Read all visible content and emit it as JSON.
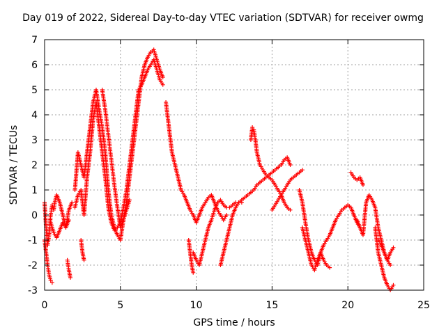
{
  "chart_data": {
    "type": "scatter",
    "title": "Day 019 of 2022, Sidereal Day-to-day VTEC variation (SDTVAR) for receiver owmg",
    "xlabel": "GPS time / hours",
    "ylabel": "SDTVAR / TECUs",
    "xlim": [
      0,
      25
    ],
    "ylim": [
      -3,
      7
    ],
    "xticks": [
      "0",
      "5",
      "10",
      "15",
      "20",
      "25"
    ],
    "yticks": [
      "-3",
      "-2",
      "-1",
      "0",
      "1",
      "2",
      "3",
      "4",
      "5",
      "6",
      "7"
    ],
    "grid": true,
    "marker": "+",
    "color": "#ff0000",
    "series": [
      {
        "name": "trace-1",
        "x": [
          0.0,
          0.1,
          0.2,
          0.3,
          0.4,
          0.5,
          0.6,
          0.7,
          0.8,
          1.0,
          1.2,
          1.4,
          1.6,
          1.8
        ],
        "y": [
          0.5,
          -0.5,
          -1.2,
          -0.8,
          0.0,
          0.4,
          0.2,
          0.6,
          0.8,
          0.5,
          0.0,
          -0.5,
          0.2,
          0.5
        ]
      },
      {
        "name": "trace-2",
        "x": [
          0.0,
          0.1,
          0.2,
          0.3,
          0.4,
          0.5
        ],
        "y": [
          -1.0,
          -1.5,
          -2.0,
          -2.4,
          -2.6,
          -2.7
        ]
      },
      {
        "name": "trace-3",
        "x": [
          0.4,
          0.6,
          0.8,
          1.0,
          1.2,
          1.4,
          1.6
        ],
        "y": [
          -0.3,
          -0.7,
          -0.9,
          -0.6,
          -0.3,
          -0.5,
          -0.2
        ]
      },
      {
        "name": "trace-4",
        "x": [
          1.5,
          1.6,
          1.7
        ],
        "y": [
          -1.8,
          -2.2,
          -2.5
        ]
      },
      {
        "name": "trace-5",
        "x": [
          2.0,
          2.2,
          2.4,
          2.6,
          2.8,
          3.0,
          3.2,
          3.4,
          3.6,
          3.8,
          4.0,
          4.2,
          4.4,
          4.6,
          4.8,
          5.0,
          5.2,
          5.4,
          5.6,
          5.8,
          6.0,
          6.2,
          6.4,
          6.6,
          6.8,
          7.0,
          7.2,
          7.4,
          7.6,
          7.8
        ],
        "y": [
          1.0,
          2.5,
          2.0,
          1.5,
          2.5,
          3.5,
          4.5,
          5.0,
          4.2,
          3.5,
          2.5,
          1.0,
          0.0,
          -0.5,
          -0.8,
          -1.0,
          -0.2,
          0.5,
          1.5,
          2.5,
          3.5,
          4.5,
          5.5,
          6.0,
          6.3,
          6.5,
          6.6,
          6.2,
          5.8,
          5.5
        ]
      },
      {
        "name": "trace-6",
        "x": [
          2.0,
          2.2,
          2.4,
          2.6,
          2.8,
          3.0,
          3.2,
          3.4,
          3.6,
          3.8,
          4.0,
          4.2,
          4.4,
          4.6,
          4.8,
          5.0,
          5.2,
          5.4,
          5.6,
          5.8,
          6.0,
          6.2,
          6.4,
          6.6,
          6.8,
          7.0,
          7.2,
          7.4,
          7.6,
          7.8
        ],
        "y": [
          0.3,
          0.8,
          1.0,
          0.0,
          1.5,
          2.5,
          3.8,
          4.5,
          3.5,
          2.5,
          1.5,
          0.3,
          -0.3,
          -0.6,
          -0.5,
          -0.3,
          0.3,
          1.0,
          2.0,
          3.0,
          4.0,
          5.0,
          5.2,
          5.5,
          5.8,
          6.0,
          6.2,
          5.8,
          5.4,
          5.2
        ]
      },
      {
        "name": "trace-7",
        "x": [
          2.4,
          2.5,
          2.6
        ],
        "y": [
          -1.0,
          -1.5,
          -1.8
        ]
      },
      {
        "name": "trace-8",
        "x": [
          3.8,
          4.0,
          4.2,
          4.4,
          4.6,
          4.8,
          5.0,
          5.2,
          5.4,
          5.6
        ],
        "y": [
          5.0,
          4.2,
          3.2,
          2.2,
          1.2,
          0.3,
          -0.5,
          -0.2,
          0.2,
          0.6
        ]
      },
      {
        "name": "trace-9",
        "x": [
          8.0,
          8.2,
          8.4,
          8.6,
          8.8,
          9.0,
          9.2,
          9.4,
          9.6,
          9.8,
          10.0,
          10.2,
          10.4,
          10.6,
          10.8,
          11.0,
          11.2,
          11.4,
          11.6,
          11.8,
          12.0
        ],
        "y": [
          4.5,
          3.5,
          2.5,
          2.0,
          1.5,
          1.0,
          0.8,
          0.5,
          0.2,
          0.0,
          -0.3,
          0.0,
          0.3,
          0.5,
          0.7,
          0.8,
          0.5,
          0.2,
          0.0,
          -0.2,
          0.0
        ]
      },
      {
        "name": "trace-10",
        "x": [
          9.5,
          9.6,
          9.7,
          9.8
        ],
        "y": [
          -1.0,
          -1.5,
          -2.0,
          -2.3
        ]
      },
      {
        "name": "trace-11",
        "x": [
          9.8,
          10.0,
          10.2,
          10.4,
          10.6,
          10.8,
          11.0,
          11.2,
          11.4,
          11.6,
          11.8,
          12.0,
          12.2,
          12.4,
          12.6,
          12.8,
          13.0
        ],
        "y": [
          -1.5,
          -1.8,
          -2.0,
          -1.5,
          -1.0,
          -0.5,
          -0.2,
          0.2,
          0.5,
          0.6,
          0.4,
          0.3,
          0.3,
          0.4,
          0.5,
          0.5,
          0.5
        ]
      },
      {
        "name": "trace-12",
        "x": [
          11.6,
          11.8,
          12.0,
          12.2,
          12.4,
          12.6,
          12.8,
          13.0,
          13.2,
          13.4,
          13.6,
          13.8,
          14.0,
          14.2,
          14.4,
          14.6,
          14.8,
          15.0,
          15.2,
          15.4,
          15.6,
          15.8,
          16.0,
          16.2
        ],
        "y": [
          -2.0,
          -1.5,
          -1.0,
          -0.5,
          0.0,
          0.3,
          0.5,
          0.6,
          0.7,
          0.8,
          0.9,
          1.0,
          1.2,
          1.3,
          1.4,
          1.5,
          1.6,
          1.7,
          1.8,
          1.9,
          2.0,
          2.2,
          2.3,
          2.0
        ]
      },
      {
        "name": "trace-13",
        "x": [
          13.6,
          13.7,
          13.8,
          13.9,
          14.0,
          14.2,
          14.4,
          14.6,
          14.8,
          15.0,
          15.2,
          15.4,
          15.6,
          15.8,
          16.0,
          16.2
        ],
        "y": [
          3.0,
          3.5,
          3.4,
          3.0,
          2.5,
          2.0,
          1.8,
          1.6,
          1.5,
          1.4,
          1.2,
          1.0,
          0.8,
          0.5,
          0.3,
          0.2
        ]
      },
      {
        "name": "trace-14",
        "x": [
          15.0,
          15.2,
          15.4,
          15.6,
          15.8,
          16.0,
          16.2,
          16.4,
          16.6,
          16.8,
          17.0
        ],
        "y": [
          0.2,
          0.4,
          0.6,
          0.8,
          1.0,
          1.2,
          1.4,
          1.5,
          1.6,
          1.7,
          1.8
        ]
      },
      {
        "name": "trace-15",
        "x": [
          16.8,
          17.0,
          17.2,
          17.4,
          17.6,
          17.8,
          18.0,
          18.2,
          18.4,
          18.6,
          18.8,
          19.0,
          19.2,
          19.4,
          19.6,
          19.8,
          20.0,
          20.2,
          20.4,
          20.6,
          20.8
        ],
        "y": [
          1.0,
          0.5,
          -0.3,
          -1.0,
          -1.5,
          -1.8,
          -2.0,
          -1.5,
          -1.2,
          -1.0,
          -0.8,
          -0.5,
          -0.2,
          0.0,
          0.2,
          0.3,
          0.4,
          0.3,
          0.0,
          -0.3,
          -0.5
        ]
      },
      {
        "name": "trace-16",
        "x": [
          17.0,
          17.2,
          17.4,
          17.6,
          17.8,
          18.0,
          18.2,
          18.4,
          18.6,
          18.8
        ],
        "y": [
          -0.5,
          -1.0,
          -1.5,
          -2.0,
          -2.2,
          -1.8,
          -1.5,
          -1.8,
          -2.0,
          -2.1
        ]
      },
      {
        "name": "trace-17",
        "x": [
          20.2,
          20.4,
          20.6,
          20.8,
          21.0
        ],
        "y": [
          1.7,
          1.5,
          1.4,
          1.5,
          1.2
        ]
      },
      {
        "name": "trace-18",
        "x": [
          20.6,
          20.8,
          21.0,
          21.2,
          21.4,
          21.6,
          21.8,
          22.0,
          22.2,
          22.4,
          22.6,
          22.8
        ],
        "y": [
          -0.2,
          -0.5,
          -0.8,
          0.5,
          0.8,
          0.6,
          0.3,
          -0.5,
          -1.0,
          -1.5,
          -1.8,
          -2.0
        ]
      },
      {
        "name": "trace-19",
        "x": [
          21.8,
          22.0,
          22.2,
          22.4,
          22.6,
          22.8,
          23.0
        ],
        "y": [
          -0.5,
          -1.5,
          -2.0,
          -2.5,
          -2.8,
          -3.0,
          -2.8
        ]
      },
      {
        "name": "trace-20",
        "x": [
          22.0,
          22.2,
          22.4,
          22.6,
          22.8,
          23.0
        ],
        "y": [
          -1.0,
          -1.2,
          -1.5,
          -1.8,
          -1.5,
          -1.3
        ]
      }
    ]
  }
}
